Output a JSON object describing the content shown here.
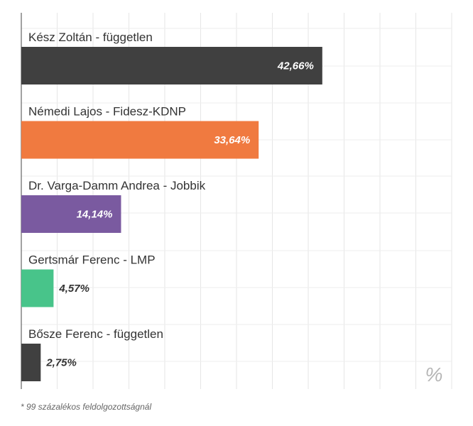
{
  "chart_data": {
    "type": "bar",
    "orientation": "horizontal",
    "categories": [
      "Kész Zoltán - független",
      "Némedi Lajos - Fidesz-KDNP",
      "Dr. Varga-Damm Andrea - Jobbik",
      "Gertsmár Ferenc - LMP",
      "Bősze Ferenc - független"
    ],
    "values": [
      42.66,
      33.64,
      14.14,
      4.57,
      2.75
    ],
    "value_labels": [
      "42,66%",
      "33,64%",
      "14,14%",
      "4,57%",
      "2,75%"
    ],
    "colors": [
      "#404040",
      "#f07a40",
      "#7a5aa0",
      "#48c48a",
      "#404040"
    ],
    "xlim": [
      0,
      61
    ],
    "unit_symbol": "%",
    "grid": true,
    "footnote": "* 99 százalékos feldolgozottságnál"
  }
}
